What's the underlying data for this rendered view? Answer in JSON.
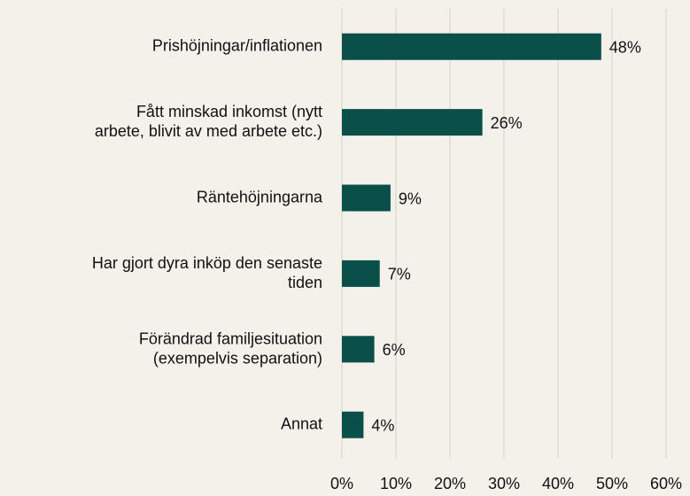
{
  "chart_data": {
    "type": "bar",
    "orientation": "horizontal",
    "categories": [
      "Prishöjningar/inflationen",
      "Fått minskad inkomst  (nytt\narbete, blivit av med arbete etc.)",
      "Räntehöjningarna",
      "Har gjort dyra inköp den senaste\ntiden",
      "Förändrad familjesituation\n(exempelvis separation)",
      "Annat"
    ],
    "values": [
      48,
      26,
      9,
      7,
      6,
      4
    ],
    "value_labels": [
      "48%",
      "26%",
      "9%",
      "7%",
      "6%",
      "4%"
    ],
    "color": "#0b4f4a",
    "xlim": [
      0,
      60
    ],
    "xticks": [
      {
        "value": 0,
        "label": "0%"
      },
      {
        "value": 10,
        "label": "10%"
      },
      {
        "value": 20,
        "label": "20%"
      },
      {
        "value": 30,
        "label": "30%"
      },
      {
        "value": 40,
        "label": "40%"
      },
      {
        "value": 50,
        "label": "50%"
      },
      {
        "value": 60,
        "label": "60%"
      }
    ],
    "grid": true
  }
}
